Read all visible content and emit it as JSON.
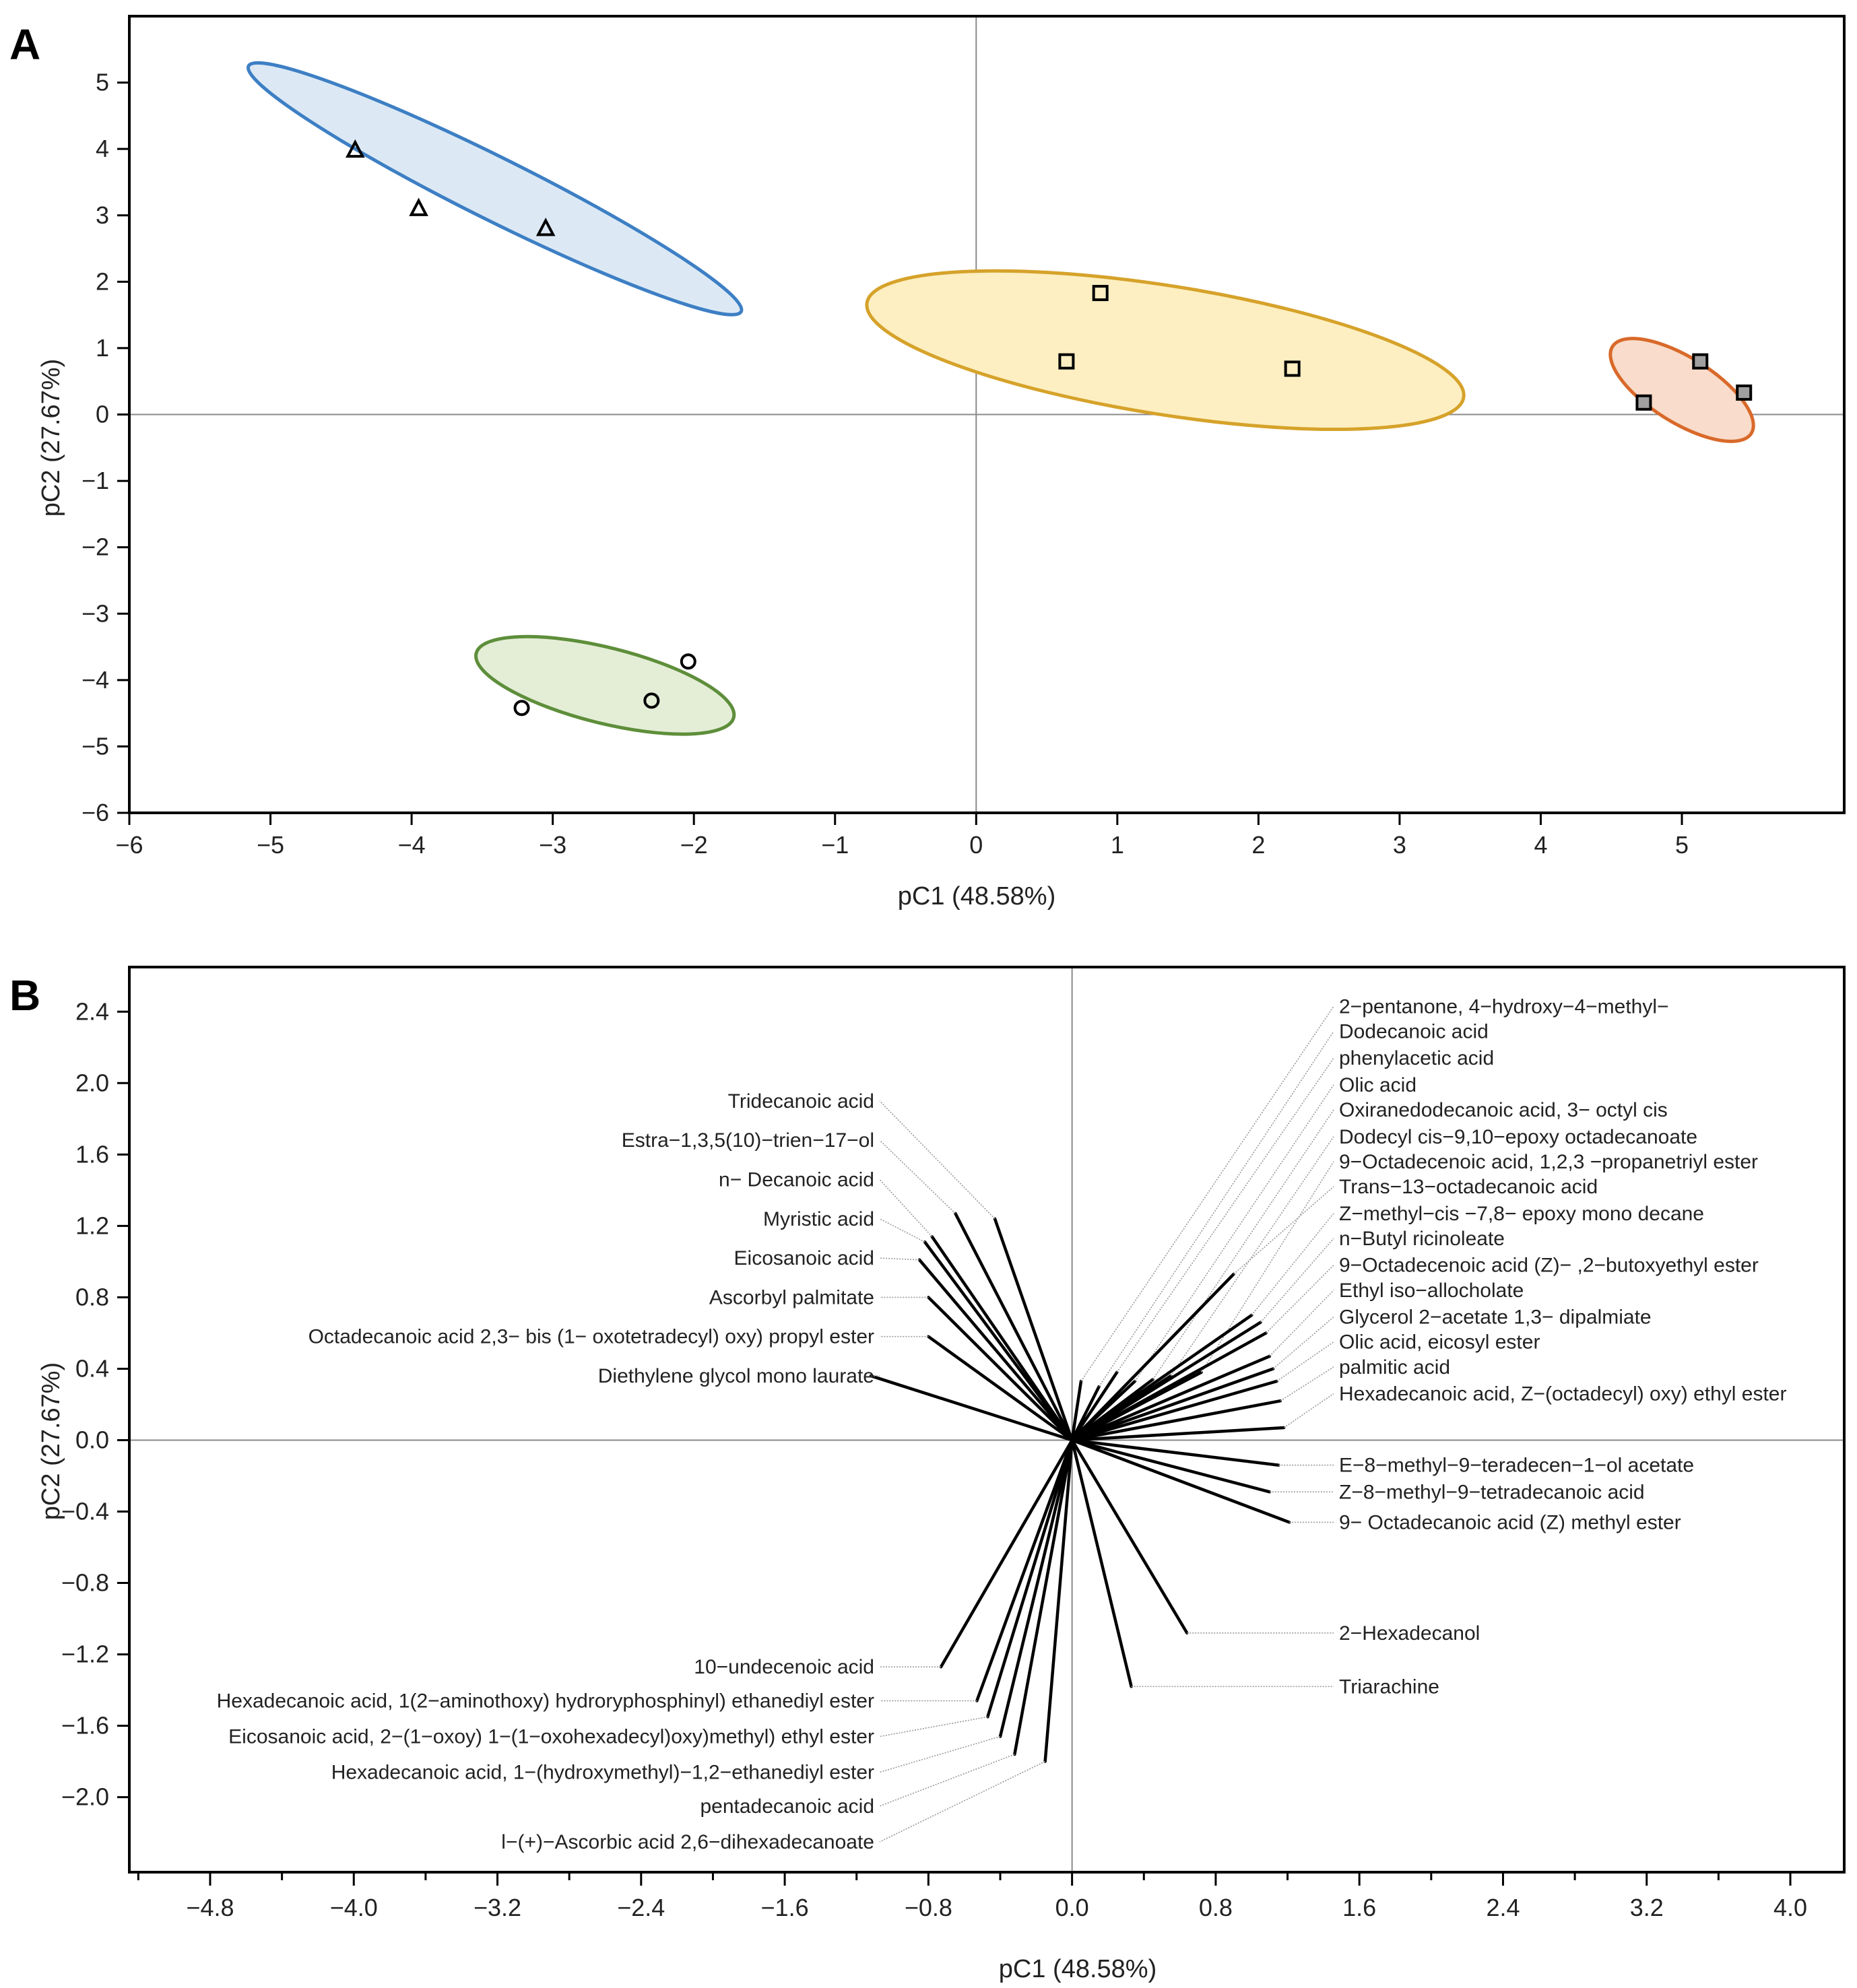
{
  "panels": {
    "A": {
      "letter": "A"
    },
    "B": {
      "letter": "B"
    }
  },
  "chart_data": [
    {
      "type": "scatter",
      "panel": "A",
      "title": "",
      "xlabel": "pC1 (48.58%)",
      "ylabel": "pC2 (27.67%)",
      "xlim": [
        -6,
        6.15
      ],
      "ylim": [
        -6,
        6
      ],
      "xticks": [
        -6,
        -5,
        -4,
        -3,
        -2,
        -1,
        0,
        1,
        2,
        3,
        4,
        5
      ],
      "yticks": [
        5,
        4,
        3,
        2,
        1,
        0,
        -1,
        -2,
        -3,
        -4,
        -5,
        -6
      ],
      "tick_labels_x": [
        "−6",
        "−5",
        "−4",
        "−3",
        "−2",
        "−1",
        "0",
        "1",
        "2",
        "3",
        "4",
        "5"
      ],
      "tick_labels_y": [
        "5",
        "4",
        "3",
        "2",
        "1",
        "0",
        "−1",
        "−2",
        "−3",
        "−4",
        "−5",
        "−6"
      ],
      "reference_lines": {
        "x": 0,
        "y": 0
      },
      "groups": [
        {
          "name": "triangles",
          "marker": "triangle",
          "marker_fill": "none",
          "ellipse_fill": "#dce9f5",
          "ellipse_stroke": "#3d7fc4",
          "ellipse": {
            "cx": -3.41,
            "cy": 3.4,
            "a": 1.95,
            "b": 0.47,
            "angle_deg": -26.5
          },
          "points": [
            {
              "x": -4.4,
              "y": 3.98
            },
            {
              "x": -3.95,
              "y": 3.1
            },
            {
              "x": -3.05,
              "y": 2.8
            }
          ]
        },
        {
          "name": "open-squares",
          "marker": "square",
          "marker_fill": "none",
          "ellipse_fill": "#fdefc1",
          "ellipse_stroke": "#d6a22a",
          "ellipse": {
            "cx": 1.34,
            "cy": 0.97,
            "a": 2.14,
            "b": 0.97,
            "angle_deg": -9
          },
          "points": [
            {
              "x": 0.88,
              "y": 1.83
            },
            {
              "x": 0.64,
              "y": 0.8
            },
            {
              "x": 2.24,
              "y": 0.69
            }
          ]
        },
        {
          "name": "filled-squares",
          "marker": "square",
          "marker_fill": "#a0a0a0",
          "ellipse_fill": "#f9dccb",
          "ellipse_stroke": "#d9692a",
          "ellipse": {
            "cx": 5.0,
            "cy": 0.37,
            "a": 0.58,
            "b": 0.49,
            "angle_deg": -32
          },
          "points": [
            {
              "x": 4.73,
              "y": 0.18
            },
            {
              "x": 5.13,
              "y": 0.8
            },
            {
              "x": 5.44,
              "y": 0.33
            }
          ]
        },
        {
          "name": "circles",
          "marker": "circle",
          "marker_fill": "none",
          "ellipse_fill": "#e4eed7",
          "ellipse_stroke": "#5e8e3a",
          "ellipse": {
            "cx": -2.63,
            "cy": -4.08,
            "a": 0.94,
            "b": 0.57,
            "angle_deg": -14
          },
          "points": [
            {
              "x": -3.22,
              "y": -4.42
            },
            {
              "x": -2.3,
              "y": -4.31
            },
            {
              "x": -2.04,
              "y": -3.72
            }
          ]
        }
      ]
    },
    {
      "type": "biplot",
      "panel": "B",
      "title": "",
      "xlabel": "pC1 (48.58%)",
      "ylabel": "pC2 (27.67%)",
      "xlim": [
        -5.25,
        4.3
      ],
      "ylim": [
        -2.42,
        2.65
      ],
      "xticks": [
        -4.8,
        -4.0,
        -3.2,
        -2.4,
        -1.6,
        -0.8,
        0.0,
        0.8,
        1.6,
        2.4,
        3.2,
        4.0
      ],
      "yticks": [
        2.4,
        2.0,
        1.6,
        1.2,
        0.8,
        0.4,
        0.0,
        -0.4,
        -0.8,
        -1.2,
        -1.6,
        -2.0
      ],
      "tick_labels_x": [
        "−4.8",
        "−4.0",
        "−3.2",
        "−2.4",
        "−1.6",
        "−0.8",
        "0.0",
        "0.8",
        "1.6",
        "2.4",
        "3.2",
        "4.0"
      ],
      "tick_labels_y": [
        "2.4",
        "2.0",
        "1.6",
        "1.2",
        "0.8",
        "0.4",
        "0.0",
        "−0.4",
        "−0.8",
        "−1.2",
        "−1.6",
        "−2.0"
      ],
      "reference_lines": {
        "x": 0,
        "y": 0
      },
      "vectors": [
        {
          "label": "Tridecanoic acid",
          "x": -0.43,
          "y": 1.24,
          "ly": 1.9
        },
        {
          "label": "Estra−1,3,5(10)−trien−17−ol",
          "x": -0.65,
          "y": 1.27,
          "ly": 1.68
        },
        {
          "label": "n− Decanoic acid",
          "x": -0.78,
          "y": 1.14,
          "ly": 1.46
        },
        {
          "label": "Myristic acid",
          "x": -0.82,
          "y": 1.11,
          "ly": 1.24
        },
        {
          "label": "Eicosanoic acid",
          "x": -0.85,
          "y": 1.01,
          "ly": 1.02
        },
        {
          "label": "Ascorbyl palmitate",
          "x": -0.8,
          "y": 0.8,
          "ly": 0.8
        },
        {
          "label": "Octadecanoic acid 2,3− bis (1− oxotetradecyl) oxy) propyl ester",
          "x": -0.8,
          "y": 0.58,
          "ly": 0.58
        },
        {
          "label": "Diethylene glycol mono laurate",
          "x": -1.12,
          "y": 0.36,
          "ly": 0.36
        },
        {
          "label": "2−pentanone, 4−hydroxy−4−methyl−",
          "x": 0.05,
          "y": 0.33,
          "ly": 2.43
        },
        {
          "label": "Dodecanoic acid",
          "x": 0.15,
          "y": 0.3,
          "ly": 2.29
        },
        {
          "label": "phenylacetic acid",
          "x": 0.25,
          "y": 0.38,
          "ly": 2.14
        },
        {
          "label": "Olic acid",
          "x": 0.35,
          "y": 0.33,
          "ly": 1.99
        },
        {
          "label": "Oxiranedodecanoic acid, 3− octyl cis",
          "x": 0.45,
          "y": 0.34,
          "ly": 1.85
        },
        {
          "label": "Dodecyl cis−9,10−epoxy octadecanoate",
          "x": 0.55,
          "y": 0.36,
          "ly": 1.7
        },
        {
          "label": "9−Octadecenoic acid, 1,2,3 −propanetriyl ester",
          "x": 0.72,
          "y": 0.38,
          "ly": 1.56
        },
        {
          "label": "Trans−13−octadecanoic acid",
          "x": 0.9,
          "y": 0.93,
          "ly": 1.42
        },
        {
          "label": "Z−methyl−cis −7,8− epoxy mono decane",
          "x": 1.0,
          "y": 0.7,
          "ly": 1.27
        },
        {
          "label": "n−Butyl ricinoleate",
          "x": 1.05,
          "y": 0.66,
          "ly": 1.13
        },
        {
          "label": "9−Octadecenoic acid (Z)− ,2−butoxyethyl ester",
          "x": 1.08,
          "y": 0.6,
          "ly": 0.98
        },
        {
          "label": "Ethyl iso−allocholate",
          "x": 1.1,
          "y": 0.47,
          "ly": 0.84
        },
        {
          "label": "Glycerol 2−acetate 1,3− dipalmiate",
          "x": 1.12,
          "y": 0.4,
          "ly": 0.69
        },
        {
          "label": "Olic acid, eicosyl ester",
          "x": 1.14,
          "y": 0.33,
          "ly": 0.55
        },
        {
          "label": "palmitic acid",
          "x": 1.16,
          "y": 0.22,
          "ly": 0.41
        },
        {
          "label": "Hexadecanoic acid, Z−(octadecyl) oxy) ethyl ester",
          "x": 1.18,
          "y": 0.07,
          "ly": 0.26
        },
        {
          "label": "E−8−methyl−9−teradecen−1−ol acetate",
          "x": 1.15,
          "y": -0.14,
          "ly": -0.14
        },
        {
          "label": "Z−8−methyl−9−tetradecanoic acid",
          "x": 1.1,
          "y": -0.29,
          "ly": -0.29
        },
        {
          "label": "9− Octadecanoic acid (Z) methyl ester",
          "x": 1.21,
          "y": -0.46,
          "ly": -0.46
        },
        {
          "label": "2−Hexadecanol",
          "x": 0.64,
          "y": -1.08,
          "ly": -1.08
        },
        {
          "label": "Triarachine",
          "x": 0.33,
          "y": -1.38,
          "ly": -1.38
        },
        {
          "label": "10−undecenoic acid",
          "x": -0.73,
          "y": -1.27,
          "ly": -1.27
        },
        {
          "label": "Hexadecanoic acid, 1(2−aminothoxy) hydroryphosphinyl) ethanediyl ester",
          "x": -0.53,
          "y": -1.46,
          "ly": -1.46
        },
        {
          "label": "Eicosanoic acid, 2−(1−oxoy) 1−(1−oxohexadecyl)oxy)methyl) ethyl ester",
          "x": -0.47,
          "y": -1.55,
          "ly": -1.66
        },
        {
          "label": "Hexadecanoic acid, 1−(hydroxymethyl)−1,2−ethanediyl ester",
          "x": -0.4,
          "y": -1.66,
          "ly": -1.86
        },
        {
          "label": "pentadecanoic acid",
          "x": -0.32,
          "y": -1.76,
          "ly": -2.05
        },
        {
          "label": "l−(+)−Ascorbic acid 2,6−dihexadecanoate",
          "x": -0.15,
          "y": -1.8,
          "ly": -2.25
        }
      ]
    }
  ]
}
